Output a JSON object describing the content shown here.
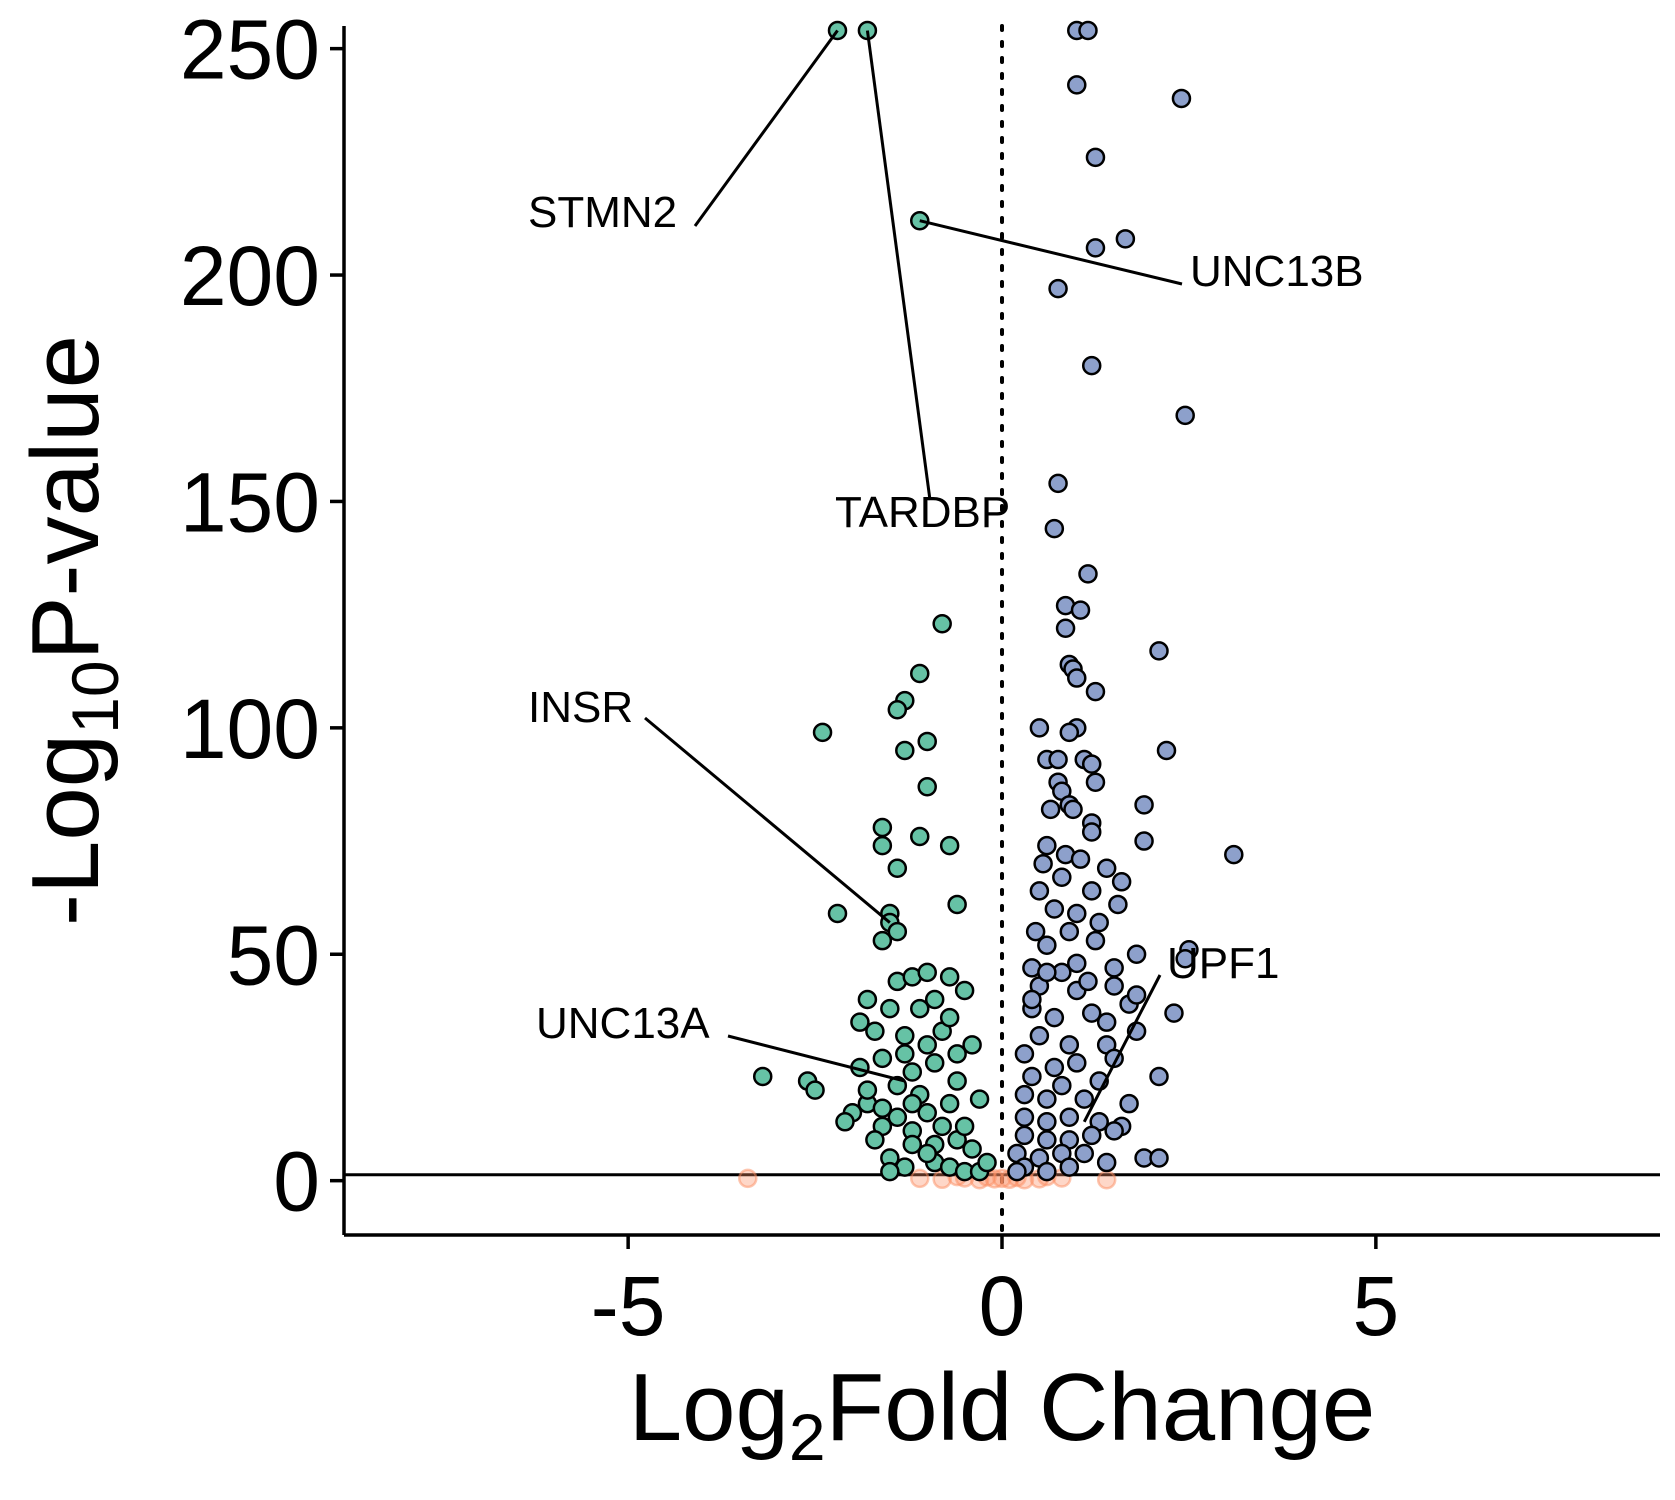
{
  "chart_data": {
    "type": "scatter",
    "title": "",
    "xlabel": {
      "pre": "Log",
      "sub": "2",
      "post": "Fold Change"
    },
    "ylabel": {
      "pre": "-Log",
      "sub": "10",
      "post": "P-value"
    },
    "xlim": [
      -8.8,
      8.8
    ],
    "ylim": [
      -12,
      255
    ],
    "x_ticks": [
      -5,
      0,
      5
    ],
    "x_tick_labels": [
      "-5",
      "0",
      "5"
    ],
    "y_ticks": [
      0,
      50,
      100,
      150,
      200,
      250
    ],
    "y_tick_labels": [
      "0",
      "50",
      "100",
      "150",
      "200",
      "250"
    ],
    "reference_lines": {
      "vertical_dotted_x": 0,
      "horizontal_solid_y": 1.3
    },
    "grid": false,
    "legend": "none",
    "colors": {
      "down": "#66c2a5",
      "up": "#8da0cb",
      "not_significant": "#fc8d62",
      "outline": "#000000"
    },
    "series": [
      {
        "group": "down",
        "points": [
          [
            -2.2,
            254
          ],
          [
            -1.8,
            254
          ],
          [
            -1.1,
            212
          ],
          [
            -0.8,
            123
          ],
          [
            -1.1,
            112
          ],
          [
            -1.3,
            106
          ],
          [
            -1.4,
            104
          ],
          [
            -2.4,
            99
          ],
          [
            -1.0,
            97
          ],
          [
            -1.3,
            95
          ],
          [
            -1.0,
            87
          ],
          [
            -1.6,
            78
          ],
          [
            -1.1,
            76
          ],
          [
            -1.6,
            74
          ],
          [
            -0.7,
            74
          ],
          [
            -1.4,
            69
          ],
          [
            -0.6,
            61
          ],
          [
            -2.2,
            59
          ],
          [
            -1.5,
            59
          ],
          [
            -1.5,
            57
          ],
          [
            -1.4,
            55
          ],
          [
            -1.6,
            53
          ],
          [
            -1.4,
            44
          ],
          [
            -1.8,
            40
          ],
          [
            -1.5,
            38
          ],
          [
            -1.2,
            45
          ],
          [
            -1.0,
            46
          ],
          [
            -0.7,
            45
          ],
          [
            -0.5,
            42
          ],
          [
            -1.9,
            35
          ],
          [
            -1.7,
            33
          ],
          [
            -1.3,
            32
          ],
          [
            -1.0,
            30
          ],
          [
            -0.8,
            33
          ],
          [
            -0.4,
            30
          ],
          [
            -3.2,
            23
          ],
          [
            -2.6,
            22
          ],
          [
            -2.5,
            20
          ],
          [
            -1.9,
            25
          ],
          [
            -1.6,
            27
          ],
          [
            -1.2,
            24
          ],
          [
            -0.9,
            26
          ],
          [
            -0.6,
            22
          ],
          [
            -0.3,
            18
          ],
          [
            -2.0,
            15
          ],
          [
            -1.8,
            17
          ],
          [
            -2.1,
            13
          ],
          [
            -1.6,
            12
          ],
          [
            -1.4,
            14
          ],
          [
            -1.2,
            11
          ],
          [
            -1.0,
            15
          ],
          [
            -0.8,
            12
          ],
          [
            -0.6,
            9
          ],
          [
            -0.4,
            7
          ],
          [
            -1.5,
            5
          ],
          [
            -1.3,
            3
          ],
          [
            -0.9,
            4
          ],
          [
            -0.7,
            3
          ],
          [
            -0.5,
            2
          ],
          [
            -0.3,
            2
          ],
          [
            -1.5,
            2
          ],
          [
            -1.2,
            8
          ],
          [
            -1.7,
            9
          ],
          [
            -0.9,
            8
          ],
          [
            -1.1,
            19
          ],
          [
            -1.4,
            21
          ],
          [
            -0.7,
            17
          ],
          [
            -1.3,
            28
          ],
          [
            -0.6,
            28
          ],
          [
            -1.1,
            38
          ],
          [
            -0.9,
            40
          ],
          [
            -0.7,
            36
          ],
          [
            -1.6,
            16
          ],
          [
            -0.5,
            12
          ],
          [
            -0.2,
            4
          ],
          [
            -1.0,
            6
          ],
          [
            -1.8,
            20
          ],
          [
            -1.2,
            17
          ]
        ]
      },
      {
        "group": "up",
        "points": [
          [
            1.0,
            254
          ],
          [
            1.15,
            254
          ],
          [
            1.0,
            242
          ],
          [
            2.4,
            239
          ],
          [
            1.25,
            226
          ],
          [
            1.65,
            208
          ],
          [
            1.25,
            206
          ],
          [
            0.75,
            197
          ],
          [
            1.2,
            180
          ],
          [
            2.45,
            169
          ],
          [
            0.75,
            154
          ],
          [
            0.7,
            144
          ],
          [
            1.15,
            134
          ],
          [
            0.85,
            127
          ],
          [
            1.05,
            126
          ],
          [
            0.85,
            122
          ],
          [
            2.1,
            117
          ],
          [
            0.9,
            114
          ],
          [
            0.95,
            113
          ],
          [
            1.0,
            111
          ],
          [
            1.25,
            108
          ],
          [
            0.5,
            100
          ],
          [
            1.0,
            100
          ],
          [
            0.9,
            99
          ],
          [
            2.2,
            95
          ],
          [
            0.6,
            93
          ],
          [
            0.75,
            93
          ],
          [
            1.1,
            93
          ],
          [
            1.2,
            92
          ],
          [
            0.75,
            88
          ],
          [
            1.25,
            88
          ],
          [
            0.8,
            86
          ],
          [
            0.9,
            83
          ],
          [
            1.9,
            83
          ],
          [
            0.65,
            82
          ],
          [
            0.95,
            82
          ],
          [
            1.2,
            79
          ],
          [
            1.2,
            77
          ],
          [
            1.9,
            75
          ],
          [
            3.1,
            72
          ],
          [
            0.6,
            74
          ],
          [
            0.85,
            72
          ],
          [
            1.05,
            71
          ],
          [
            0.55,
            70
          ],
          [
            0.8,
            67
          ],
          [
            1.4,
            69
          ],
          [
            1.6,
            66
          ],
          [
            1.2,
            64
          ],
          [
            0.5,
            64
          ],
          [
            0.7,
            60
          ],
          [
            1.0,
            59
          ],
          [
            1.55,
            61
          ],
          [
            1.3,
            57
          ],
          [
            0.45,
            55
          ],
          [
            0.9,
            55
          ],
          [
            0.6,
            52
          ],
          [
            1.25,
            53
          ],
          [
            2.5,
            51
          ],
          [
            2.45,
            49
          ],
          [
            1.8,
            50
          ],
          [
            0.4,
            47
          ],
          [
            0.8,
            46
          ],
          [
            1.5,
            47
          ],
          [
            0.5,
            43
          ],
          [
            1.0,
            42
          ],
          [
            1.5,
            43
          ],
          [
            1.7,
            39
          ],
          [
            1.8,
            41
          ],
          [
            2.3,
            37
          ],
          [
            0.4,
            38
          ],
          [
            0.7,
            36
          ],
          [
            1.2,
            37
          ],
          [
            1.8,
            33
          ],
          [
            0.5,
            32
          ],
          [
            0.9,
            30
          ],
          [
            1.4,
            30
          ],
          [
            0.3,
            28
          ],
          [
            0.7,
            25
          ],
          [
            1.0,
            26
          ],
          [
            1.5,
            27
          ],
          [
            2.1,
            23
          ],
          [
            0.4,
            23
          ],
          [
            0.8,
            21
          ],
          [
            1.3,
            22
          ],
          [
            0.3,
            19
          ],
          [
            0.6,
            18
          ],
          [
            1.1,
            18
          ],
          [
            1.7,
            17
          ],
          [
            0.3,
            14
          ],
          [
            0.6,
            13
          ],
          [
            0.9,
            14
          ],
          [
            1.3,
            13
          ],
          [
            1.6,
            12
          ],
          [
            0.3,
            10
          ],
          [
            0.6,
            9
          ],
          [
            0.9,
            9
          ],
          [
            1.2,
            10
          ],
          [
            1.5,
            11
          ],
          [
            1.9,
            5
          ],
          [
            2.1,
            5
          ],
          [
            0.2,
            6
          ],
          [
            0.5,
            5
          ],
          [
            0.8,
            6
          ],
          [
            1.1,
            6
          ],
          [
            1.4,
            4
          ],
          [
            0.3,
            3
          ],
          [
            0.6,
            2
          ],
          [
            0.9,
            3
          ],
          [
            0.2,
            2
          ],
          [
            1.4,
            35
          ],
          [
            1.0,
            48
          ],
          [
            0.6,
            46
          ],
          [
            0.4,
            40
          ],
          [
            1.15,
            44
          ]
        ]
      },
      {
        "group": "not_significant",
        "points": [
          [
            -3.4,
            0.5
          ],
          [
            -0.8,
            0.3
          ],
          [
            -0.5,
            0.6
          ],
          [
            -0.3,
            0.2
          ],
          [
            -0.2,
            0.8
          ],
          [
            -0.1,
            0.4
          ],
          [
            0.0,
            0.5
          ],
          [
            0.1,
            0.3
          ],
          [
            0.2,
            0.7
          ],
          [
            0.3,
            0.2
          ],
          [
            0.5,
            0.4
          ],
          [
            0.8,
            0.6
          ],
          [
            1.4,
            0.2
          ],
          [
            -1.1,
            0.5
          ],
          [
            -0.6,
            0.9
          ],
          [
            0.6,
            0.9
          ]
        ]
      }
    ],
    "annotations": [
      {
        "label": "STMN2",
        "point": [
          -2.2,
          254
        ]
      },
      {
        "label": "TARDBP",
        "point": [
          -1.8,
          254
        ]
      },
      {
        "label": "UNC13B",
        "point": [
          -1.1,
          212
        ]
      },
      {
        "label": "INSR",
        "point": [
          -1.5,
          57
        ]
      },
      {
        "label": "UNC13A",
        "point": [
          -1.3,
          22
        ]
      },
      {
        "label": "UPF1",
        "point": [
          1.1,
          13
        ]
      }
    ]
  }
}
